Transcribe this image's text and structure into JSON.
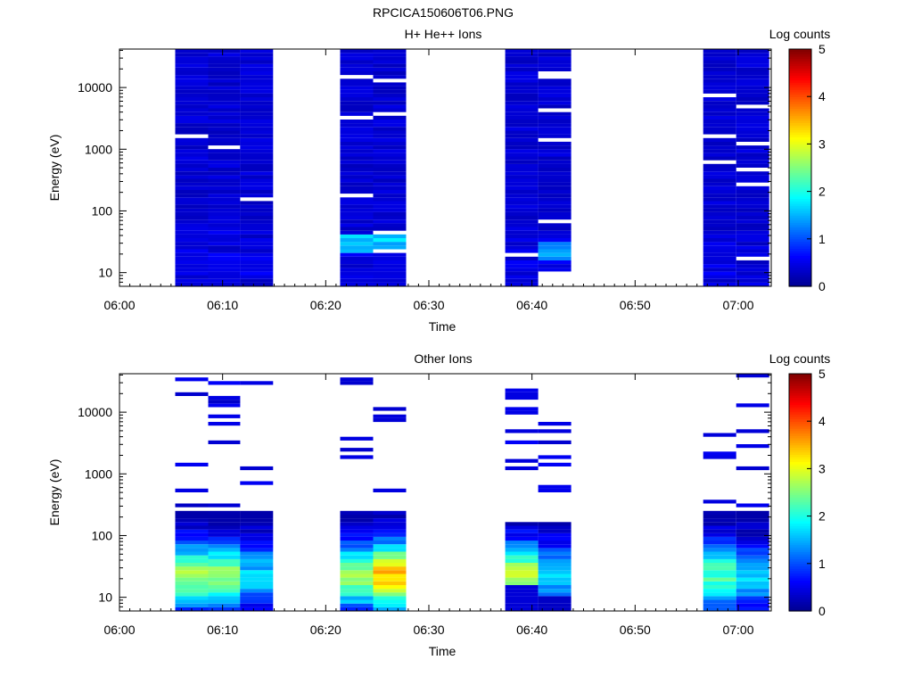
{
  "figure_title": "RPCICA150606T06.PNG",
  "chart_data": [
    {
      "type": "heatmap",
      "title": "H+ He++ Ions",
      "xlabel": "Time",
      "ylabel": "Energy (eV)",
      "colorbar_label": "Log counts",
      "colorbar_ticks": [
        "0",
        "1",
        "2",
        "3",
        "4",
        "5"
      ],
      "colorbar_range": [
        0,
        5
      ],
      "x_ticks": [
        "06:00",
        "06:10",
        "06:20",
        "06:30",
        "06:40",
        "06:50",
        "07:00"
      ],
      "x_range_min": [
        0,
        63.2
      ],
      "y_scale": "log",
      "y_ticks": [
        "10",
        "100",
        "1000",
        "10000"
      ],
      "y_range": [
        6,
        42000
      ],
      "time_columns_min": [
        [
          5.4,
          8.6
        ],
        [
          8.6,
          11.7
        ],
        [
          11.7,
          14.9
        ],
        [
          21.4,
          24.6
        ],
        [
          24.6,
          27.8
        ],
        [
          37.4,
          40.6
        ],
        [
          40.6,
          43.8
        ],
        [
          56.6,
          59.8
        ],
        [
          59.8,
          63.0
        ]
      ],
      "colormap": [
        "#00008f",
        "#0000ff",
        "#00ffff",
        "#ffff00",
        "#ff0000",
        "#800000"
      ],
      "background": "#ffffff"
    },
    {
      "type": "heatmap",
      "title": "Other Ions",
      "xlabel": "Time",
      "ylabel": "Energy (eV)",
      "colorbar_label": "Log counts",
      "colorbar_ticks": [
        "0",
        "1",
        "2",
        "3",
        "4",
        "5"
      ],
      "colorbar_range": [
        0,
        5
      ],
      "x_ticks": [
        "06:00",
        "06:10",
        "06:20",
        "06:30",
        "06:40",
        "06:50",
        "07:00"
      ],
      "x_range_min": [
        0,
        63.2
      ],
      "y_scale": "log",
      "y_ticks": [
        "10",
        "100",
        "1000",
        "10000"
      ],
      "y_range": [
        6,
        42000
      ],
      "time_columns_min": [
        [
          5.4,
          8.6
        ],
        [
          8.6,
          11.7
        ],
        [
          11.7,
          14.9
        ],
        [
          21.4,
          24.6
        ],
        [
          24.6,
          27.8
        ],
        [
          37.4,
          40.6
        ],
        [
          40.6,
          43.8
        ],
        [
          56.6,
          59.8
        ],
        [
          59.8,
          63.0
        ]
      ],
      "colormap": [
        "#00008f",
        "#0000ff",
        "#00ffff",
        "#ffff00",
        "#ff0000",
        "#800000"
      ],
      "background": "#ffffff"
    }
  ]
}
